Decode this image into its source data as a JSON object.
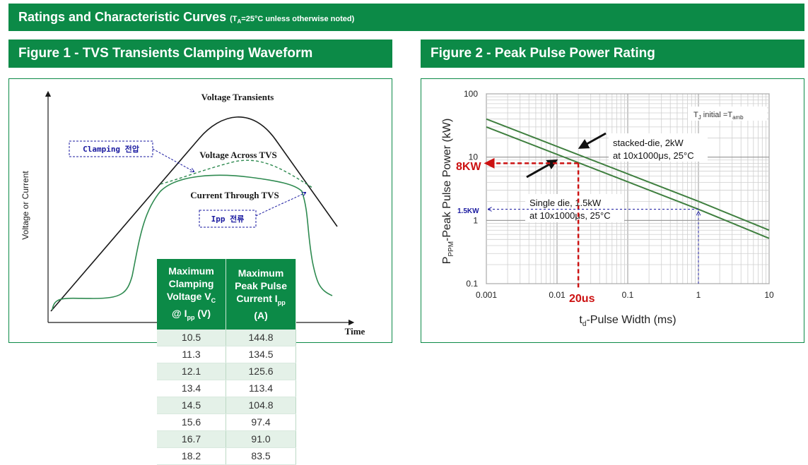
{
  "header": {
    "title": "Ratings and Characteristic Curves",
    "note_prefix": "(T",
    "note_sub": "A",
    "note_suffix": "=25°C unless otherwise noted)"
  },
  "figure1": {
    "title": "Figure 1 - TVS Transients Clamping Waveform",
    "y_axis_label": "Voltage or Current",
    "x_axis_label": "Time",
    "label_voltage_transients": "Voltage Transients",
    "label_voltage_across": "Voltage Across TVS",
    "label_current_through": "Current Through TVS",
    "callout_clamping": "Clamping 전압",
    "callout_ipp": "Ipp 전류",
    "colors": {
      "transient": "#1a1a1a",
      "clamp": "#2e8a50",
      "callout": "#1a1aa0"
    }
  },
  "table": {
    "header_col1": [
      "Maximum",
      "Clamping",
      "Voltage V",
      "C",
      "@ I",
      "pp",
      " (V)"
    ],
    "header_col2": [
      "Maximum",
      "Peak Pulse",
      "Current I",
      "pp",
      "(A)"
    ],
    "rows": [
      [
        "10.5",
        "144.8"
      ],
      [
        "11.3",
        "134.5"
      ],
      [
        "12.1",
        "125.6"
      ],
      [
        "13.4",
        "113.4"
      ],
      [
        "14.5",
        "104.8"
      ],
      [
        "15.6",
        "97.4"
      ],
      [
        "16.7",
        "91.0"
      ],
      [
        "18.2",
        "83.5"
      ]
    ]
  },
  "figure2": {
    "title": "Figure 2 - Peak Pulse Power Rating",
    "y_label_main": "P",
    "y_label_sub": "PPM",
    "y_label_rest": "-Peak Pulse Power (kW)",
    "x_label_main": "t",
    "x_label_sub": "d",
    "x_label_rest": "-Pulse Width (ms)",
    "tj_note": "T",
    "tj_sub": "J",
    "tj_rest": " initial =T",
    "tj_sub2": "amb",
    "annotation_stacked_1": "stacked-die, 2kW",
    "annotation_stacked_2": "at 10x1000μs, 25°C",
    "annotation_single_1": "Single die, 1.5kW",
    "annotation_single_2": "at 10x1000μs, 25°C",
    "marker_8kw": "8KW",
    "marker_20us": "20us",
    "marker_15kw": "1.5KW",
    "colors": {
      "lines": "#3f7f3f",
      "marker": "#cc1111",
      "marker_blue": "#1a1aa0"
    }
  },
  "chart_data": [
    {
      "type": "line",
      "title": "Figure 2 - Peak Pulse Power Rating",
      "xlabel": "td-Pulse Width (ms)",
      "ylabel": "PPPM-Peak Pulse Power (kW)",
      "xscale": "log",
      "yscale": "log",
      "xlim": [
        0.001,
        10
      ],
      "ylim": [
        0.1,
        100
      ],
      "xticks": [
        "0.001",
        "0.01",
        "0.1",
        "1",
        "10"
      ],
      "yticks": [
        "0.1",
        "1",
        "10",
        "100"
      ],
      "grid": true,
      "series": [
        {
          "name": "stacked-die, 2kW",
          "x": [
            0.001,
            1,
            10
          ],
          "y": [
            40,
            2.0,
            0.7
          ]
        },
        {
          "name": "Single die, 1.5kW",
          "x": [
            0.001,
            1,
            10
          ],
          "y": [
            30,
            1.5,
            0.52
          ]
        }
      ],
      "markers": [
        {
          "label": "8KW",
          "x": 0.02,
          "y": 8
        },
        {
          "label": "1.5KW",
          "x": 1,
          "y": 1.5
        }
      ]
    }
  ]
}
